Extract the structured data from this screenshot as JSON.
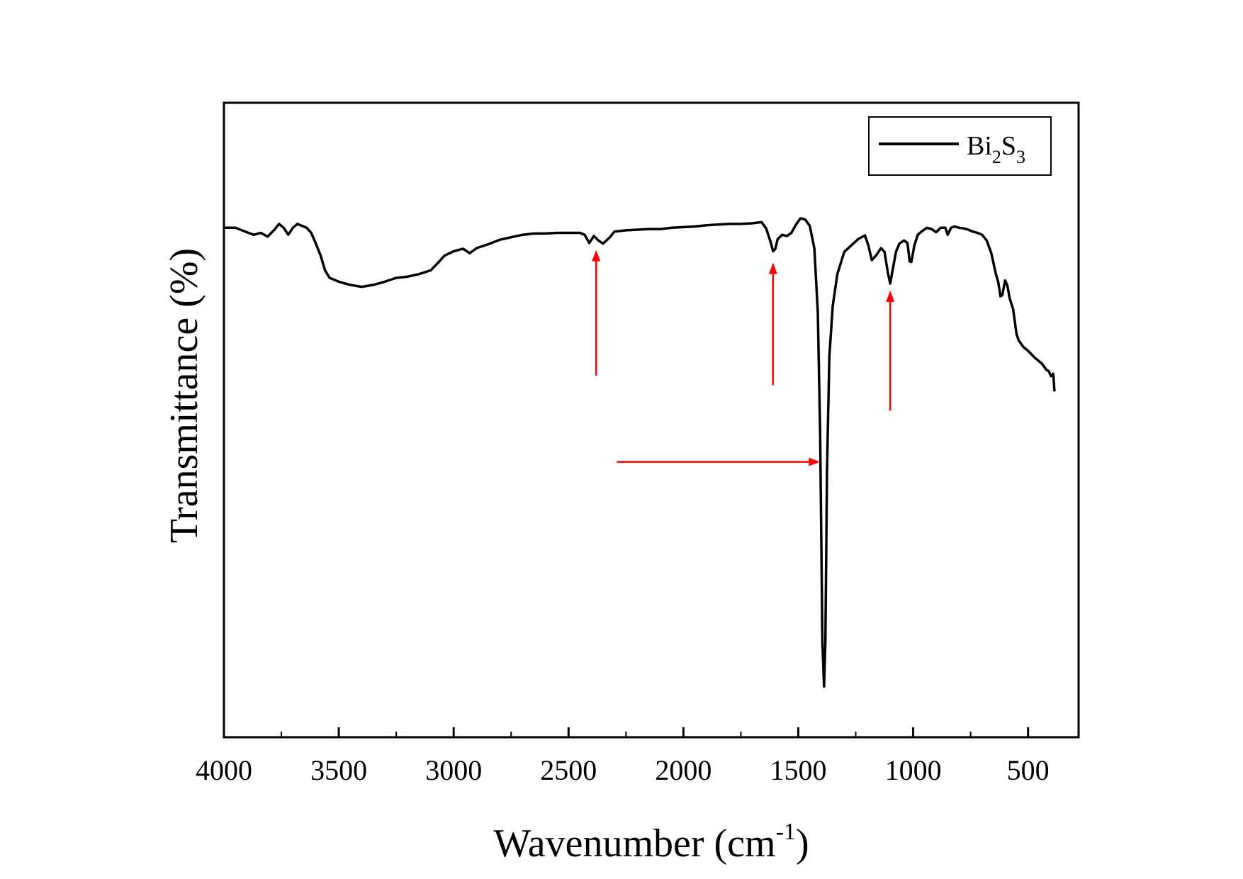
{
  "chart_data": {
    "type": "line",
    "title": "",
    "xlabel": "Wavenumber (cm",
    "xlabel_superscript": "-1",
    "xlabel_suffix": ")",
    "ylabel": "Transmittance (%)",
    "xlim": [
      4000,
      280
    ],
    "ylim": [
      0,
      100
    ],
    "x_reversed": true,
    "y_tick_labels": false,
    "x_ticks": [
      4000,
      3500,
      3000,
      2500,
      2000,
      1500,
      1000,
      500
    ],
    "x_tick_labels": [
      "4000",
      "3500",
      "3000",
      "2500",
      "2000",
      "1500",
      "1000",
      "500"
    ],
    "x_minor_ticks": [
      3750,
      3250,
      2750,
      2250,
      1750,
      1250,
      750
    ],
    "series": [
      {
        "name": "Bi2S3",
        "legend": {
          "base": "Bi",
          "sub1": "2",
          "mid": "S",
          "sub2": "3"
        },
        "color": "#000000",
        "points": [
          [
            4000,
            80.3
          ],
          [
            3950,
            80.3
          ],
          [
            3900,
            79.6
          ],
          [
            3870,
            79.2
          ],
          [
            3840,
            79.5
          ],
          [
            3810,
            78.9
          ],
          [
            3780,
            80.0
          ],
          [
            3760,
            80.9
          ],
          [
            3740,
            80.3
          ],
          [
            3720,
            79.2
          ],
          [
            3700,
            80.3
          ],
          [
            3680,
            80.9
          ],
          [
            3660,
            80.6
          ],
          [
            3640,
            80.3
          ],
          [
            3620,
            79.5
          ],
          [
            3600,
            77.8
          ],
          [
            3580,
            76.0
          ],
          [
            3560,
            73.6
          ],
          [
            3540,
            72.4
          ],
          [
            3500,
            71.8
          ],
          [
            3450,
            71.3
          ],
          [
            3400,
            71.0
          ],
          [
            3350,
            71.3
          ],
          [
            3300,
            71.8
          ],
          [
            3250,
            72.4
          ],
          [
            3200,
            72.6
          ],
          [
            3150,
            73.0
          ],
          [
            3100,
            73.6
          ],
          [
            3070,
            74.7
          ],
          [
            3040,
            75.9
          ],
          [
            3000,
            76.6
          ],
          [
            2960,
            77.0
          ],
          [
            2930,
            76.3
          ],
          [
            2900,
            77.1
          ],
          [
            2850,
            77.7
          ],
          [
            2800,
            78.4
          ],
          [
            2750,
            78.8
          ],
          [
            2700,
            79.2
          ],
          [
            2650,
            79.4
          ],
          [
            2600,
            79.4
          ],
          [
            2550,
            79.5
          ],
          [
            2500,
            79.5
          ],
          [
            2450,
            79.5
          ],
          [
            2430,
            79.2
          ],
          [
            2410,
            77.9
          ],
          [
            2390,
            79.0
          ],
          [
            2370,
            78.3
          ],
          [
            2350,
            77.8
          ],
          [
            2320,
            78.8
          ],
          [
            2300,
            79.7
          ],
          [
            2250,
            79.9
          ],
          [
            2200,
            80.0
          ],
          [
            2150,
            80.1
          ],
          [
            2100,
            80.1
          ],
          [
            2050,
            80.3
          ],
          [
            2000,
            80.4
          ],
          [
            1950,
            80.5
          ],
          [
            1900,
            80.7
          ],
          [
            1850,
            80.8
          ],
          [
            1800,
            80.9
          ],
          [
            1750,
            80.9
          ],
          [
            1700,
            81.0
          ],
          [
            1660,
            81.2
          ],
          [
            1640,
            80.2
          ],
          [
            1620,
            78.0
          ],
          [
            1610,
            76.6
          ],
          [
            1600,
            77.0
          ],
          [
            1590,
            78.5
          ],
          [
            1570,
            79.2
          ],
          [
            1550,
            79.0
          ],
          [
            1530,
            79.5
          ],
          [
            1510,
            80.8
          ],
          [
            1490,
            81.8
          ],
          [
            1470,
            81.6
          ],
          [
            1450,
            80.6
          ],
          [
            1430,
            77.0
          ],
          [
            1415,
            67.0
          ],
          [
            1405,
            48.0
          ],
          [
            1395,
            15.0
          ],
          [
            1388,
            8.0
          ],
          [
            1382,
            15.0
          ],
          [
            1375,
            42.0
          ],
          [
            1365,
            60.0
          ],
          [
            1350,
            68.0
          ],
          [
            1330,
            73.0
          ],
          [
            1300,
            76.5
          ],
          [
            1270,
            77.5
          ],
          [
            1240,
            78.5
          ],
          [
            1210,
            79.1
          ],
          [
            1195,
            77.5
          ],
          [
            1180,
            75.2
          ],
          [
            1160,
            76.0
          ],
          [
            1140,
            77.1
          ],
          [
            1125,
            76.5
          ],
          [
            1110,
            73.2
          ],
          [
            1100,
            71.5
          ],
          [
            1090,
            73.5
          ],
          [
            1075,
            76.5
          ],
          [
            1060,
            77.8
          ],
          [
            1040,
            78.3
          ],
          [
            1025,
            77.9
          ],
          [
            1015,
            75.0
          ],
          [
            1008,
            74.9
          ],
          [
            995,
            77.5
          ],
          [
            980,
            79.2
          ],
          [
            960,
            79.8
          ],
          [
            940,
            80.3
          ],
          [
            920,
            80.1
          ],
          [
            900,
            79.6
          ],
          [
            880,
            80.3
          ],
          [
            860,
            80.3
          ],
          [
            850,
            79.2
          ],
          [
            835,
            80.3
          ],
          [
            820,
            80.5
          ],
          [
            800,
            80.3
          ],
          [
            780,
            80.2
          ],
          [
            760,
            80.0
          ],
          [
            740,
            79.7
          ],
          [
            720,
            79.5
          ],
          [
            700,
            79.2
          ],
          [
            680,
            78.3
          ],
          [
            660,
            76.3
          ],
          [
            640,
            73.0
          ],
          [
            630,
            71.8
          ],
          [
            620,
            69.5
          ],
          [
            612,
            69.7
          ],
          [
            600,
            72.0
          ],
          [
            590,
            71.2
          ],
          [
            580,
            69.2
          ],
          [
            565,
            67.5
          ],
          [
            550,
            63.5
          ],
          [
            540,
            62.5
          ],
          [
            520,
            61.5
          ],
          [
            500,
            60.9
          ],
          [
            470,
            59.8
          ],
          [
            440,
            58.9
          ],
          [
            420,
            57.9
          ],
          [
            410,
            57.7
          ],
          [
            400,
            56.9
          ],
          [
            390,
            57.3
          ],
          [
            385,
            54.5
          ]
        ]
      }
    ],
    "annotations": [
      {
        "type": "arrow",
        "direction": "up",
        "x": 2380,
        "y_from": 57,
        "y_to": 76.8,
        "color": "#ff0000"
      },
      {
        "type": "arrow",
        "direction": "up",
        "x": 1610,
        "y_from": 55.5,
        "y_to": 74.8,
        "color": "#ff0000"
      },
      {
        "type": "arrow",
        "direction": "up",
        "x": 1100,
        "y_from": 51.5,
        "y_to": 70.4,
        "color": "#ff0000"
      },
      {
        "type": "arrow",
        "direction": "right",
        "y": 43.4,
        "x_from": 2290,
        "x_to": 1405,
        "color": "#ff0000"
      }
    ],
    "legend_position": "top-right",
    "grid": false
  }
}
